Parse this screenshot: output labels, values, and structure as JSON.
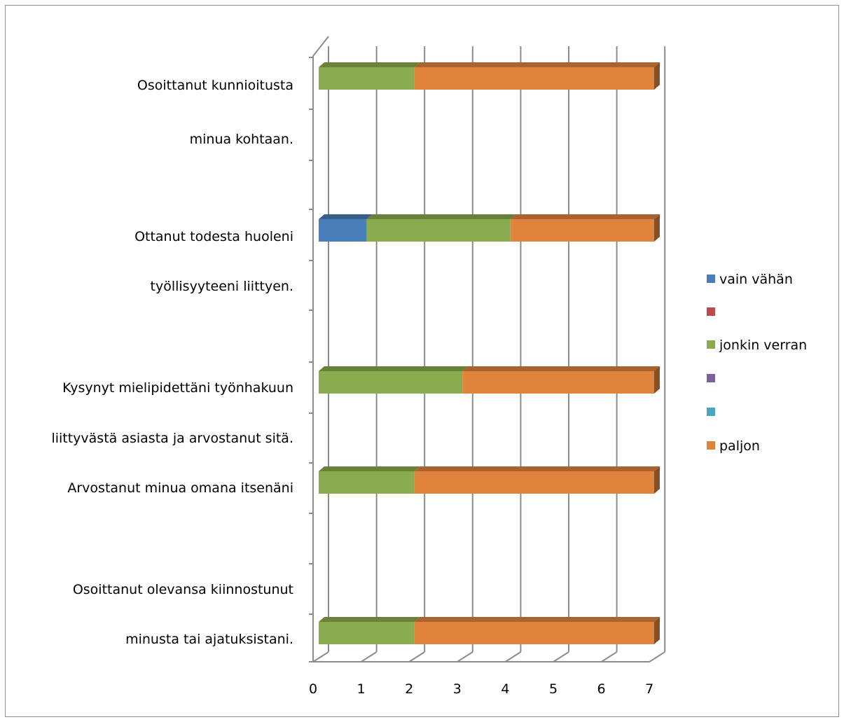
{
  "chart_data": {
    "type": "bar",
    "orientation": "horizontal",
    "stacked": true,
    "three_d": true,
    "categories": [
      [
        "Osoittanut kunnioitusta",
        "minua kohtaan."
      ],
      [
        "Ottanut todesta huoleni",
        "työllisyyteeni liittyen."
      ],
      [
        "Kysynyt mielipidettäni työnhakuun",
        "liittyvästä asiasta ja arvostanut sitä."
      ],
      [
        "Arvostanut minua omana itsenäni"
      ],
      [
        "Osoittanut olevansa kiinnostunut",
        "minusta tai ajatuksistani."
      ]
    ],
    "series": [
      {
        "name": "vain vähän",
        "color": "#4a7ebb",
        "values": [
          0,
          1,
          0,
          0,
          0
        ]
      },
      {
        "name": "",
        "color": "#be4b48",
        "values": [
          0,
          0,
          0,
          0,
          0
        ]
      },
      {
        "name": "jonkin verran",
        "color": "#8bac4e",
        "values": [
          2,
          3,
          3,
          2,
          2
        ]
      },
      {
        "name": "",
        "color": "#7d5fa0",
        "values": [
          0,
          0,
          0,
          0,
          0
        ]
      },
      {
        "name": "",
        "color": "#4aa5c0",
        "values": [
          0,
          0,
          0,
          0,
          0
        ]
      },
      {
        "name": "paljon",
        "color": "#e0843d",
        "values": [
          5,
          3,
          4,
          5,
          5
        ]
      }
    ],
    "xlim": [
      0,
      7
    ],
    "xticks": [
      "0",
      "1",
      "2",
      "3",
      "4",
      "5",
      "6",
      "7"
    ],
    "grid": true,
    "legend_position": "right"
  }
}
